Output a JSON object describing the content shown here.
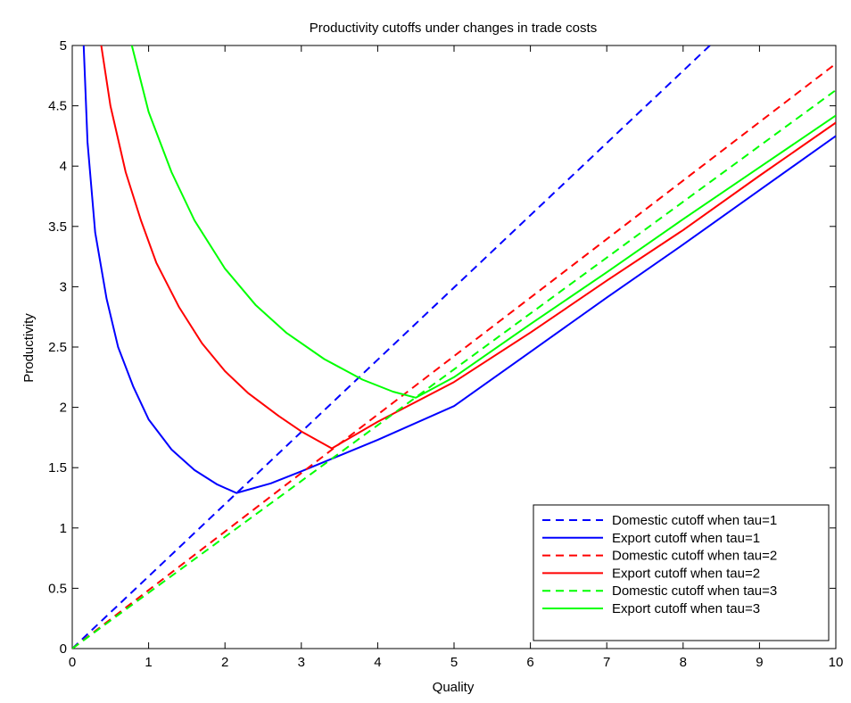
{
  "chart_data": {
    "type": "line",
    "title": "Productivity cutoffs under changes in trade costs",
    "xlabel": "Quality",
    "ylabel": "Productivity",
    "xlim": [
      0,
      10
    ],
    "ylim": [
      0,
      5
    ],
    "xticks": [
      "0",
      "1",
      "2",
      "3",
      "4",
      "5",
      "6",
      "7",
      "8",
      "9",
      "10"
    ],
    "yticks": [
      "0",
      "0.5",
      "1",
      "1.5",
      "2",
      "2.5",
      "3",
      "3.5",
      "4",
      "4.5",
      "5"
    ],
    "grid": false,
    "legend_position": "bottom-right",
    "series": [
      {
        "name": "Domestic cutoff when tau=1",
        "color": "#0000ff",
        "style": "dashed",
        "points": [
          [
            0,
            0
          ],
          [
            8.35,
            5.0
          ]
        ]
      },
      {
        "name": "Export cutoff when tau=1",
        "color": "#0000ff",
        "style": "solid",
        "points": [
          [
            0.15,
            5.0
          ],
          [
            0.2,
            4.2
          ],
          [
            0.3,
            3.45
          ],
          [
            0.45,
            2.9
          ],
          [
            0.6,
            2.5
          ],
          [
            0.8,
            2.17
          ],
          [
            1.0,
            1.9
          ],
          [
            1.3,
            1.65
          ],
          [
            1.6,
            1.48
          ],
          [
            1.9,
            1.36
          ],
          [
            2.15,
            1.29
          ],
          [
            2.6,
            1.37
          ],
          [
            3.0,
            1.47
          ],
          [
            3.5,
            1.6
          ],
          [
            4.0,
            1.73
          ],
          [
            5.0,
            2.01
          ],
          [
            6.0,
            2.46
          ],
          [
            7.0,
            2.91
          ],
          [
            8.0,
            3.35
          ],
          [
            9.0,
            3.8
          ],
          [
            10.0,
            4.25
          ]
        ]
      },
      {
        "name": "Domestic cutoff when tau=2",
        "color": "#ff0000",
        "style": "dashed",
        "points": [
          [
            0,
            0
          ],
          [
            10.0,
            4.85
          ]
        ]
      },
      {
        "name": "Export cutoff when tau=2",
        "color": "#ff0000",
        "style": "solid",
        "points": [
          [
            0.38,
            5.0
          ],
          [
            0.5,
            4.5
          ],
          [
            0.7,
            3.95
          ],
          [
            0.9,
            3.55
          ],
          [
            1.1,
            3.2
          ],
          [
            1.4,
            2.83
          ],
          [
            1.7,
            2.53
          ],
          [
            2.0,
            2.3
          ],
          [
            2.3,
            2.12
          ],
          [
            2.7,
            1.93
          ],
          [
            3.0,
            1.8
          ],
          [
            3.4,
            1.66
          ],
          [
            4.0,
            1.88
          ],
          [
            5.0,
            2.21
          ],
          [
            6.0,
            2.62
          ],
          [
            7.0,
            3.05
          ],
          [
            8.0,
            3.47
          ],
          [
            9.0,
            3.92
          ],
          [
            10.0,
            4.36
          ]
        ]
      },
      {
        "name": "Domestic cutoff when tau=3",
        "color": "#00ff00",
        "style": "dashed",
        "points": [
          [
            0,
            0
          ],
          [
            10.0,
            4.63
          ]
        ]
      },
      {
        "name": "Export cutoff when tau=3",
        "color": "#00ff00",
        "style": "solid",
        "points": [
          [
            0.78,
            5.0
          ],
          [
            1.0,
            4.45
          ],
          [
            1.3,
            3.95
          ],
          [
            1.6,
            3.55
          ],
          [
            2.0,
            3.15
          ],
          [
            2.4,
            2.85
          ],
          [
            2.8,
            2.62
          ],
          [
            3.3,
            2.4
          ],
          [
            3.8,
            2.23
          ],
          [
            4.2,
            2.13
          ],
          [
            4.5,
            2.08
          ],
          [
            5.0,
            2.25
          ],
          [
            6.0,
            2.69
          ],
          [
            7.0,
            3.12
          ],
          [
            8.0,
            3.56
          ],
          [
            9.0,
            3.99
          ],
          [
            10.0,
            4.42
          ]
        ]
      }
    ]
  }
}
